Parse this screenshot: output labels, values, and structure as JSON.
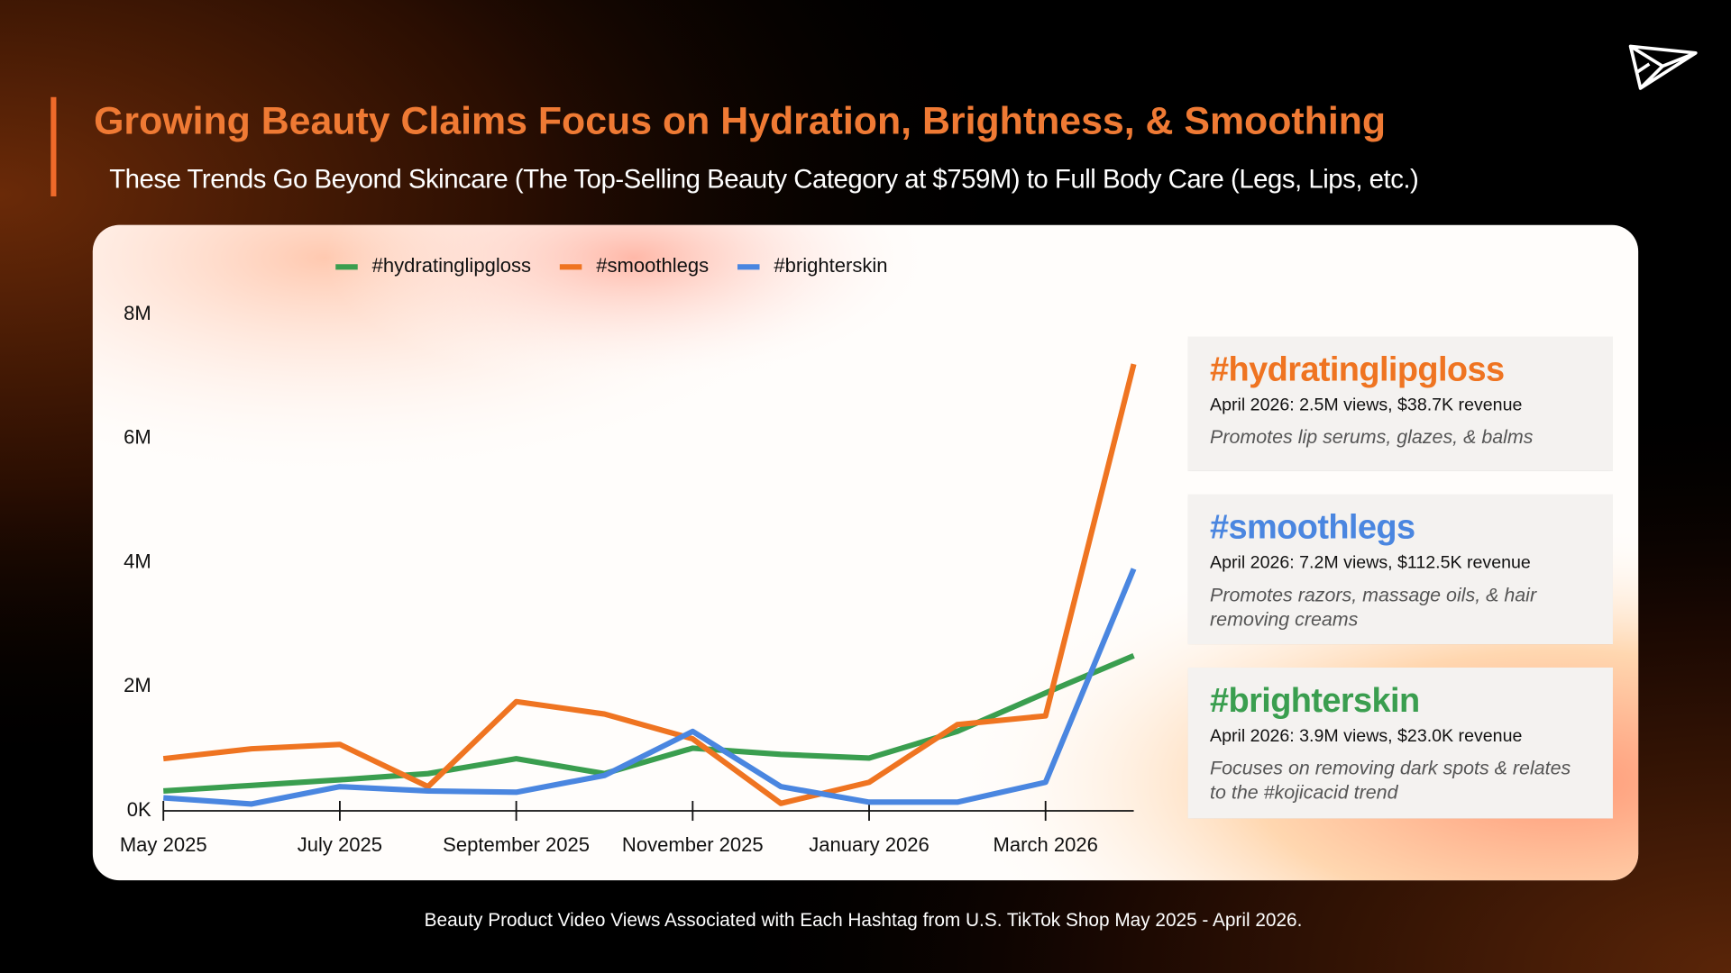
{
  "header": {
    "title": "Growing Beauty Claims Focus on Hydration, Brightness, & Smoothing",
    "subtitle": "These Trends Go Beyond Skincare (The Top-Selling Beauty Category at $759M) to Full Body Care (Legs, Lips, etc.)"
  },
  "chart_data": {
    "type": "line",
    "categories": [
      "May 2025",
      null,
      "July 2025",
      null,
      "September 2025",
      null,
      "November 2025",
      null,
      "January 2026",
      null,
      "March 2026",
      null
    ],
    "series": [
      {
        "name": "#hydratinglipgloss",
        "color": "#3a9e4f",
        "values": [
          0.32,
          0.41,
          0.5,
          0.6,
          0.84,
          0.6,
          1.01,
          0.91,
          0.85,
          1.28,
          1.9,
          2.5
        ]
      },
      {
        "name": "#smoothlegs",
        "color": "#ef7421",
        "values": [
          0.84,
          1.0,
          1.07,
          0.39,
          1.76,
          1.56,
          1.16,
          0.12,
          0.46,
          1.39,
          1.53,
          7.2
        ]
      },
      {
        "name": "#brighterskin",
        "color": "#4a86e0",
        "values": [
          0.21,
          0.11,
          0.39,
          0.32,
          0.3,
          0.57,
          1.28,
          0.39,
          0.14,
          0.14,
          0.46,
          3.9
        ]
      }
    ],
    "ylim": [
      0,
      8
    ],
    "yticks": [
      {
        "value": 0,
        "label": "0K"
      },
      {
        "value": 2,
        "label": "2M"
      },
      {
        "value": 4,
        "label": "4M"
      },
      {
        "value": 6,
        "label": "6M"
      },
      {
        "value": 8,
        "label": "8M"
      }
    ],
    "grid": false,
    "legend": "top"
  },
  "callouts": [
    {
      "title": "#hydratinglipgloss",
      "color": "#ef7421",
      "stats": "April 2026: 2.5M views, $38.7K revenue",
      "description": "Promotes lip serums, glazes, & balms"
    },
    {
      "title": "#smoothlegs",
      "color": "#4a86e0",
      "stats": "April 2026: 7.2M views, $112.5K revenue",
      "description": "Promotes razors, massage oils, & hair removing creams"
    },
    {
      "title": "#brighterskin",
      "color": "#3a9e4f",
      "stats": "April 2026: 3.9M views, $23.0K revenue",
      "description": "Focuses on removing dark spots & relates to the #kojicacid trend"
    }
  ],
  "footnote": "Beauty Product Video Views Associated with Each Hashtag  from U.S. TikTok Shop May 2025 - April 2026."
}
